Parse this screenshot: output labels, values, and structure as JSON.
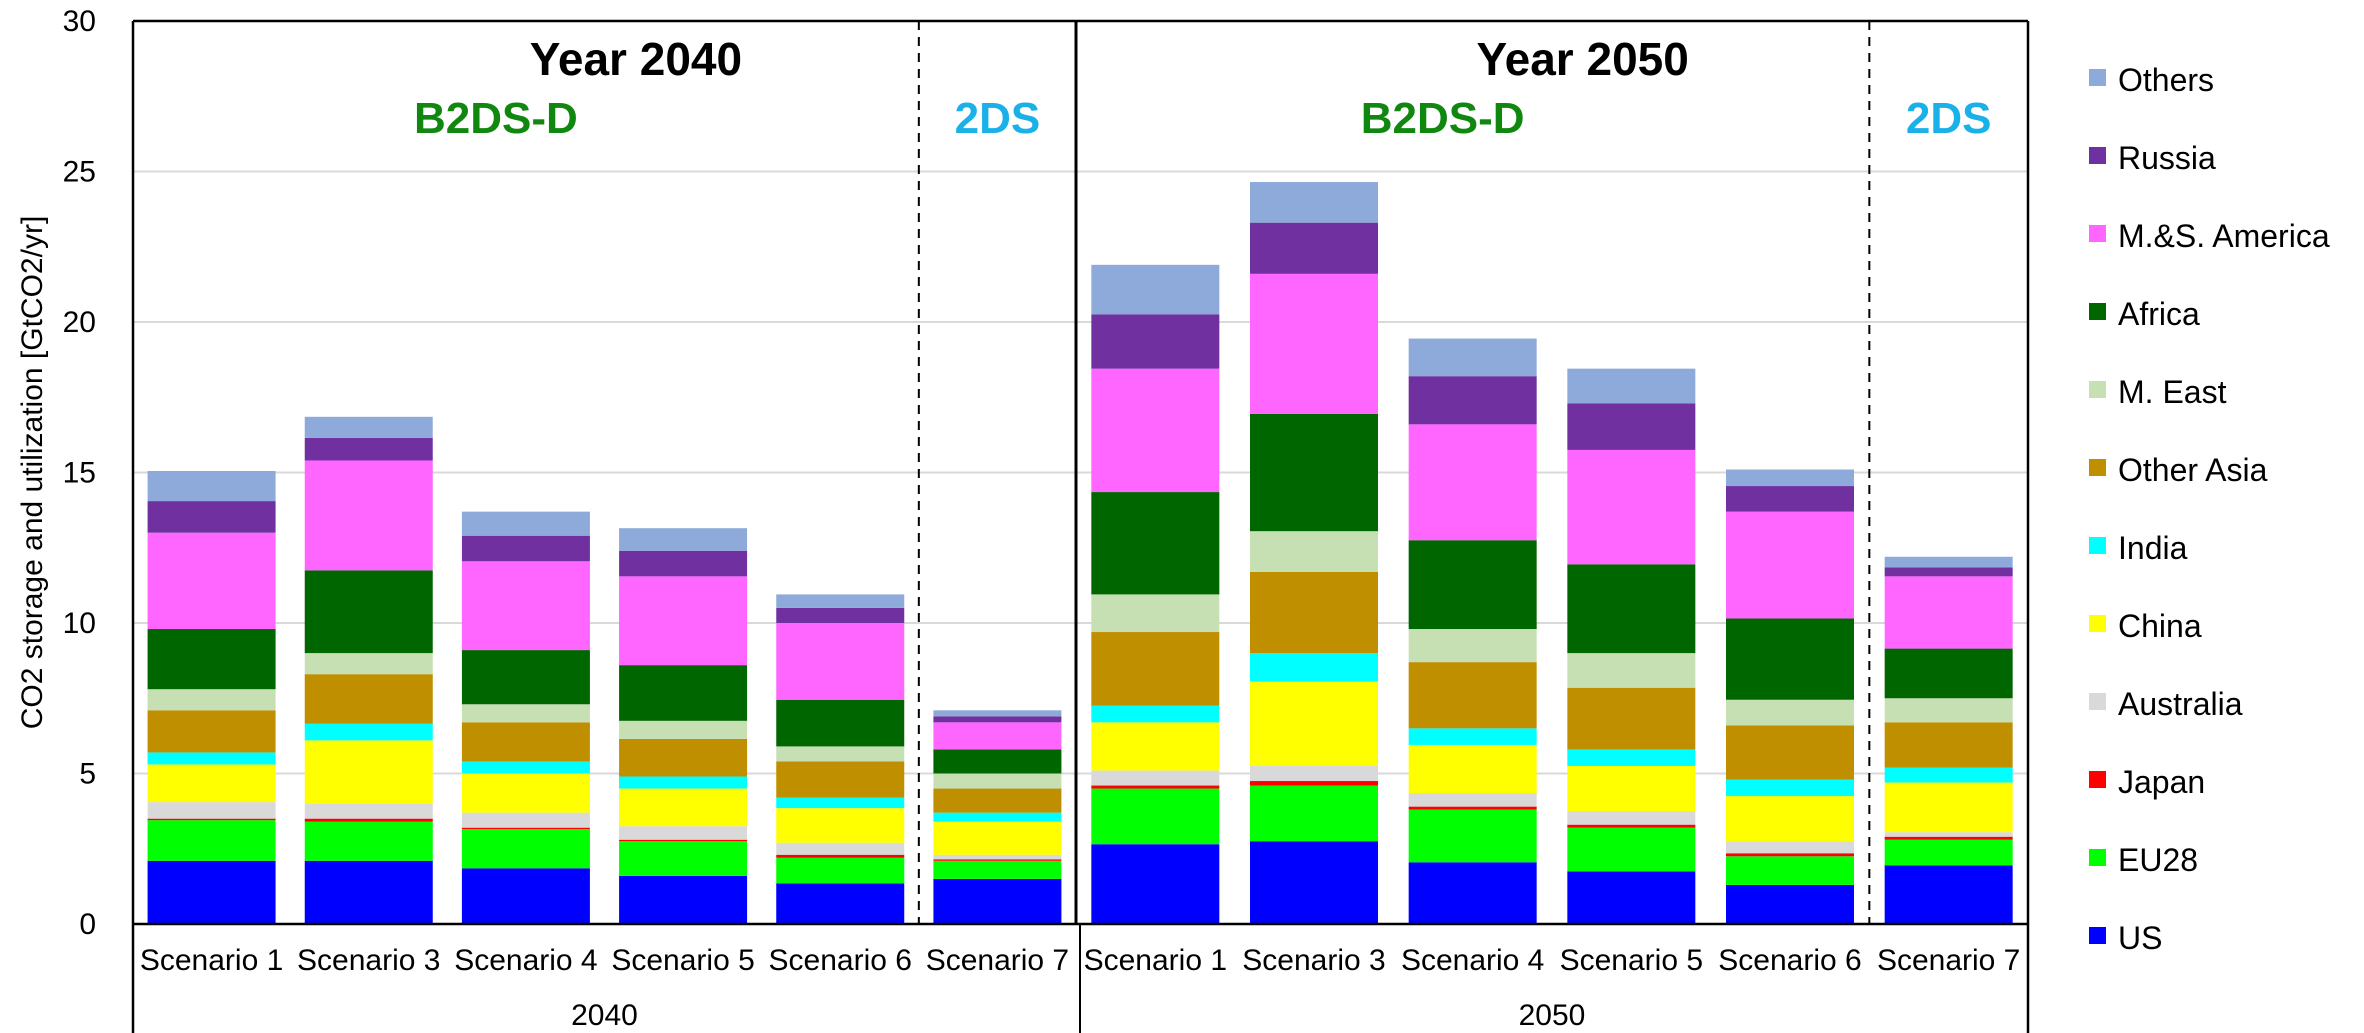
{
  "chart_data": {
    "type": "bar",
    "stacked": true,
    "ylabel": "CO2 storage and utilization [GtCO2/yr]",
    "ylim": [
      0,
      30
    ],
    "yticks": [
      0,
      5,
      10,
      15,
      20,
      25,
      30
    ],
    "grid": true,
    "legend_position": "right",
    "groups": [
      {
        "label": "2040",
        "title": "Year 2040",
        "scenario_labels": [
          {
            "text": "B2DS-D",
            "color": "#108810"
          },
          {
            "text": "2DS",
            "color": "#1ab0e8"
          }
        ],
        "categories": [
          "Scenario 1",
          "Scenario 3",
          "Scenario 4",
          "Scenario 5",
          "Scenario 6",
          "Scenario 7"
        ]
      },
      {
        "label": "2050",
        "title": "Year 2050",
        "scenario_labels": [
          {
            "text": "B2DS-D",
            "color": "#108810"
          },
          {
            "text": "2DS",
            "color": "#1ab0e8"
          }
        ],
        "categories": [
          "Scenario 1",
          "Scenario 3",
          "Scenario 4",
          "Scenario 5",
          "Scenario 6",
          "Scenario 7"
        ]
      }
    ],
    "series": [
      {
        "name": "US",
        "color": "#0000ff",
        "values": [
          2.1,
          2.1,
          1.85,
          1.6,
          1.35,
          1.5,
          2.65,
          2.75,
          2.05,
          1.75,
          1.3,
          1.95
        ]
      },
      {
        "name": "EU28",
        "color": "#00ff00",
        "values": [
          1.35,
          1.3,
          1.3,
          1.15,
          0.85,
          0.6,
          1.85,
          1.85,
          1.75,
          1.45,
          0.95,
          0.85
        ]
      },
      {
        "name": "Japan",
        "color": "#ff0000",
        "values": [
          0.05,
          0.1,
          0.05,
          0.05,
          0.1,
          0.05,
          0.1,
          0.15,
          0.1,
          0.1,
          0.1,
          0.1
        ]
      },
      {
        "name": "Australia",
        "color": "#d9d9d9",
        "values": [
          0.55,
          0.5,
          0.5,
          0.45,
          0.4,
          0.15,
          0.5,
          0.5,
          0.45,
          0.45,
          0.4,
          0.15
        ]
      },
      {
        "name": "China",
        "color": "#ffff00",
        "values": [
          1.25,
          2.1,
          1.3,
          1.25,
          1.15,
          1.1,
          1.6,
          2.8,
          1.6,
          1.5,
          1.5,
          1.65
        ]
      },
      {
        "name": "India",
        "color": "#00ffff",
        "values": [
          0.4,
          0.55,
          0.4,
          0.4,
          0.35,
          0.3,
          0.55,
          0.95,
          0.55,
          0.55,
          0.55,
          0.5
        ]
      },
      {
        "name": "Other Asia",
        "color": "#bf8f00",
        "values": [
          1.4,
          1.65,
          1.3,
          1.25,
          1.2,
          0.8,
          2.45,
          2.7,
          2.2,
          2.05,
          1.8,
          1.5
        ]
      },
      {
        "name": "M. East",
        "color": "#c6e0b4",
        "values": [
          0.7,
          0.7,
          0.6,
          0.6,
          0.5,
          0.5,
          1.25,
          1.35,
          1.1,
          1.15,
          0.85,
          0.8
        ]
      },
      {
        "name": "Africa",
        "color": "#006600",
        "values": [
          2.0,
          2.75,
          1.8,
          1.85,
          1.55,
          0.8,
          3.4,
          3.9,
          2.95,
          2.95,
          2.7,
          1.65
        ]
      },
      {
        "name": "M.&S. America",
        "color": "#ff66ff",
        "values": [
          3.2,
          3.65,
          2.95,
          2.95,
          2.55,
          0.9,
          4.1,
          4.65,
          3.85,
          3.8,
          3.55,
          2.4
        ]
      },
      {
        "name": "Russia",
        "color": "#7030a0",
        "values": [
          1.05,
          0.75,
          0.85,
          0.85,
          0.5,
          0.2,
          1.8,
          1.7,
          1.6,
          1.55,
          0.85,
          0.3
        ]
      },
      {
        "name": "Others",
        "color": "#8eaadb",
        "values": [
          1.0,
          0.7,
          0.8,
          0.75,
          0.45,
          0.2,
          1.65,
          1.35,
          1.25,
          1.15,
          0.55,
          0.35
        ]
      }
    ]
  }
}
